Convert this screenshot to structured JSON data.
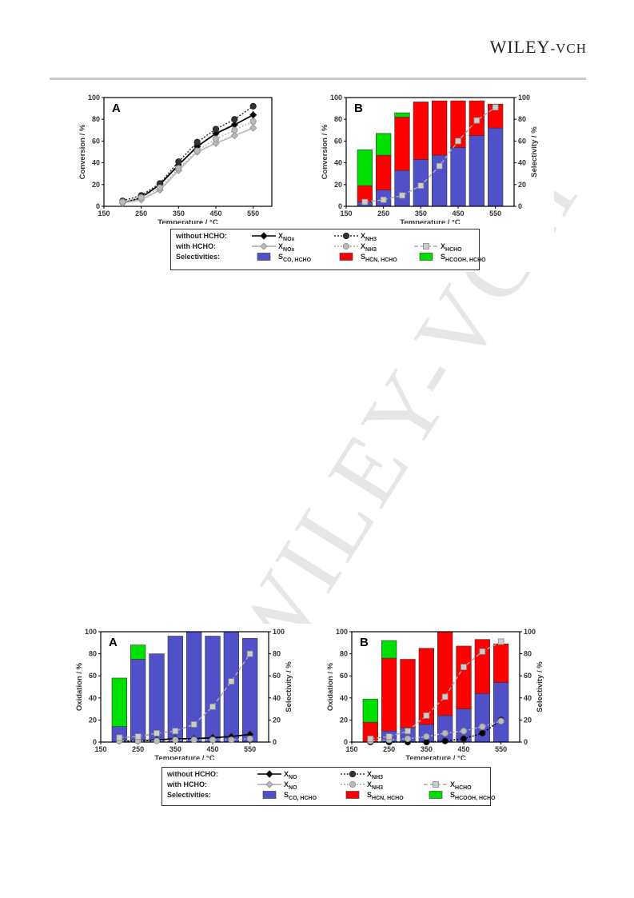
{
  "header": {
    "publisher_main": "WILEY",
    "publisher_suffix": "-VCH"
  },
  "watermark": "WILEY-VCH",
  "figure1": {
    "panel_a": {
      "label": "A",
      "ylabel": "Conversion / %",
      "xlabel": "Temperature / °C"
    },
    "panel_b": {
      "label": "B",
      "ylabel": "Conversion / %",
      "y2label": "Selectivity / %",
      "xlabel": "Temperature / °C"
    },
    "legend": {
      "row1_label": "without HCHO:",
      "row2_label": "with HCHO:",
      "row3_label": "Selectivities:",
      "x_nox": "X",
      "x_nox_sub": "NOx",
      "x_nh3": "X",
      "x_nh3_sub": "NH3",
      "x_hcho": "X",
      "x_hcho_sub": "HCHO",
      "s_co": "S",
      "s_co_sub": "CO, HCHO",
      "s_hcn": "S",
      "s_hcn_sub": "HCN, HCHO",
      "s_hcooh": "S",
      "s_hcooh_sub": "HCOOH, HCHO"
    }
  },
  "figure2": {
    "panel_a": {
      "label": "A",
      "ylabel": "Oxidation / %",
      "y2label": "Selectivity / %",
      "xlabel": "Temperature / °C"
    },
    "panel_b": {
      "label": "B",
      "ylabel": "Oxidation / %",
      "y2label": "Selectivity / %",
      "xlabel": "Temperature / °C"
    },
    "legend": {
      "row1_label": "without HCHO:",
      "row2_label": "with HCHO:",
      "row3_label": "Selectivities:",
      "x_no": "X",
      "x_no_sub": "NO",
      "x_nh3": "X",
      "x_nh3_sub": "NH3",
      "x_hcho": "X",
      "x_hcho_sub": "HCHO",
      "s_co": "S",
      "s_co_sub": "CO, HCHO",
      "s_hcn": "S",
      "s_hcn_sub": "HCN, HCHO",
      "s_hcooh": "S",
      "s_hcooh_sub": "HCOOH, HCHO"
    }
  },
  "colors": {
    "co": "#5050c8",
    "hcn": "#ff0000",
    "hcooh": "#00e000",
    "without": "#000000",
    "with": "#bbbbbb",
    "hcho": "#aaaaaa"
  },
  "chart_data": [
    {
      "panel": "Figure 1 A",
      "type": "line",
      "x": [
        200,
        250,
        300,
        350,
        400,
        450,
        500,
        550
      ],
      "xlim": [
        150,
        600
      ],
      "ylim": [
        0,
        100
      ],
      "xticks": [
        150,
        250,
        350,
        450,
        550
      ],
      "yticks": [
        0,
        20,
        40,
        60,
        80,
        100
      ],
      "xlabel": "Temperature / °C",
      "ylabel": "Conversion / %",
      "series": [
        {
          "name": "X NOx without HCHO",
          "style": "solid",
          "color": "#000000",
          "marker": "diamond",
          "values": [
            3,
            8,
            20,
            38,
            55,
            67,
            75,
            84
          ]
        },
        {
          "name": "X NH3 without HCHO",
          "style": "dotted",
          "color": "#333333",
          "marker": "circle",
          "values": [
            5,
            10,
            21,
            41,
            59,
            71,
            80,
            92
          ]
        },
        {
          "name": "X NOx with HCHO",
          "style": "solid",
          "color": "#bbbbbb",
          "marker": "diamond",
          "values": [
            3,
            6,
            15,
            33,
            50,
            58,
            65,
            72
          ]
        },
        {
          "name": "X NH3 with HCHO",
          "style": "dotted",
          "color": "#bbbbbb",
          "marker": "circle",
          "values": [
            4,
            8,
            17,
            35,
            51,
            62,
            70,
            78
          ]
        }
      ]
    },
    {
      "panel": "Figure 1 B",
      "type": "bar",
      "x": [
        200,
        250,
        300,
        350,
        400,
        450,
        500,
        550
      ],
      "xlim": [
        150,
        600
      ],
      "ylim": [
        0,
        100
      ],
      "y2lim": [
        0,
        100
      ],
      "xticks": [
        150,
        250,
        350,
        450,
        550
      ],
      "yticks": [
        0,
        20,
        40,
        60,
        80,
        100
      ],
      "xlabel": "Temperature / °C",
      "ylabel": "Conversion / %",
      "y2label": "Selectivity / %",
      "stacks": [
        {
          "name": "S CO, HCHO",
          "color": "#5050c8",
          "values": [
            4,
            15,
            33,
            43,
            47,
            54,
            65,
            72
          ]
        },
        {
          "name": "S HCN, HCHO",
          "color": "#ff0000",
          "values": [
            15,
            32,
            49,
            53,
            50,
            43,
            32,
            22
          ]
        },
        {
          "name": "S HCOOH, HCHO",
          "color": "#00e000",
          "values": [
            33,
            20,
            4,
            0,
            0,
            0,
            0,
            0
          ]
        }
      ],
      "series": [
        {
          "name": "X HCHO",
          "style": "dashed",
          "color": "#aaaaaa",
          "marker": "square",
          "values": [
            4,
            6,
            10,
            19,
            37,
            60,
            79,
            91
          ]
        }
      ]
    },
    {
      "panel": "Figure 2 A",
      "type": "bar",
      "x": [
        200,
        250,
        300,
        350,
        400,
        450,
        500,
        550
      ],
      "xlim": [
        150,
        600
      ],
      "ylim": [
        0,
        100
      ],
      "y2lim": [
        0,
        100
      ],
      "xticks": [
        150,
        250,
        350,
        450,
        550
      ],
      "yticks": [
        0,
        20,
        40,
        60,
        80,
        100
      ],
      "xlabel": "Temperature / °C",
      "ylabel": "Oxidation / %",
      "y2label": "Selectivity / %",
      "stacks": [
        {
          "name": "S CO, HCHO",
          "color": "#5050c8",
          "values": [
            14,
            75,
            80,
            96,
            100,
            96,
            100,
            94
          ]
        },
        {
          "name": "S HCN, HCHO",
          "color": "#ff0000",
          "values": [
            0,
            0,
            0,
            0,
            0,
            0,
            0,
            0
          ]
        },
        {
          "name": "S HCOOH, HCHO",
          "color": "#00e000",
          "values": [
            44,
            13,
            0,
            0,
            0,
            0,
            0,
            0
          ]
        }
      ],
      "series": [
        {
          "name": "X NO without HCHO",
          "style": "solid",
          "color": "#000000",
          "marker": "diamond",
          "values": [
            1,
            1,
            2,
            3,
            3,
            4,
            5,
            7
          ]
        },
        {
          "name": "X NH3 with HCHO",
          "style": "dotted",
          "color": "#bbbbbb",
          "marker": "circle",
          "values": [
            1,
            1,
            1,
            2,
            2,
            2,
            2,
            3
          ]
        },
        {
          "name": "X HCHO",
          "style": "dashed",
          "color": "#aaaaaa",
          "marker": "square",
          "values": [
            4,
            5,
            8,
            10,
            16,
            32,
            55,
            80
          ]
        }
      ]
    },
    {
      "panel": "Figure 2 B",
      "type": "bar",
      "x": [
        200,
        250,
        300,
        350,
        400,
        450,
        500,
        550
      ],
      "xlim": [
        150,
        600
      ],
      "ylim": [
        0,
        100
      ],
      "y2lim": [
        0,
        100
      ],
      "xticks": [
        150,
        250,
        350,
        450,
        550
      ],
      "yticks": [
        0,
        20,
        40,
        60,
        80,
        100
      ],
      "xlabel": "Temperature / °C",
      "ylabel": "Oxidation / %",
      "y2label": "Selectivity / %",
      "stacks": [
        {
          "name": "S CO, HCHO",
          "color": "#5050c8",
          "values": [
            0,
            10,
            13,
            16,
            24,
            30,
            44,
            54
          ]
        },
        {
          "name": "S HCN, HCHO",
          "color": "#ff0000",
          "values": [
            18,
            66,
            62,
            69,
            76,
            57,
            49,
            35
          ]
        },
        {
          "name": "S HCOOH, HCHO",
          "color": "#00e000",
          "values": [
            21,
            16,
            0,
            0,
            0,
            0,
            0,
            0
          ]
        }
      ],
      "series": [
        {
          "name": "X NH3 without HCHO",
          "style": "dotted",
          "color": "#000000",
          "marker": "circle",
          "values": [
            0,
            0,
            0,
            0,
            1,
            3,
            8,
            20
          ]
        },
        {
          "name": "X NH3 with HCHO",
          "style": "dotted",
          "color": "#bbbbbb",
          "marker": "circle",
          "values": [
            1,
            2,
            3,
            5,
            8,
            10,
            14,
            19
          ]
        },
        {
          "name": "X HCHO",
          "style": "dashed",
          "color": "#aaaaaa",
          "marker": "square",
          "values": [
            3,
            5,
            10,
            24,
            41,
            68,
            82,
            91
          ]
        }
      ]
    }
  ]
}
